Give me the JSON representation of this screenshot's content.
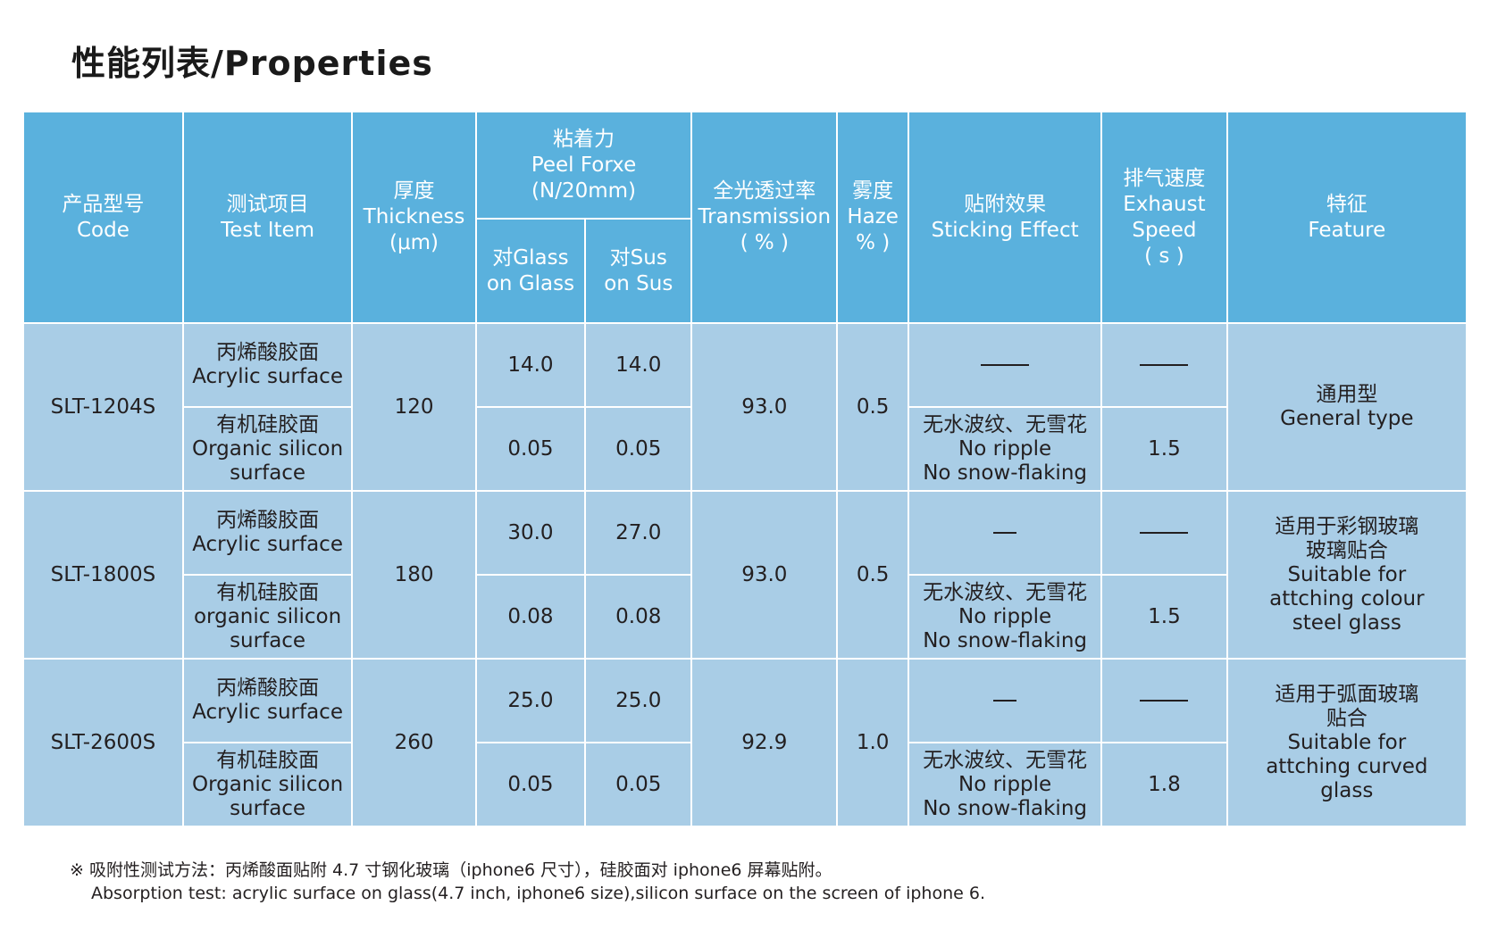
{
  "title": "性能列表/Properties",
  "header": {
    "code": {
      "zh": "产品型号",
      "en": "Code"
    },
    "test_item": {
      "zh": "测试项目",
      "en": "Test Item"
    },
    "thickness": {
      "zh": "厚度",
      "en": "Thickness",
      "unit": "(μm)"
    },
    "peel": {
      "zh": "粘着力",
      "en": "Peel Forxe",
      "unit": "(N/20mm)"
    },
    "glass": {
      "zh": "对Glass",
      "en": "on Glass"
    },
    "sus": {
      "zh": "对Sus",
      "en": "on Sus"
    },
    "transmission": {
      "zh": "全光透过率",
      "en": "Transmission",
      "unit": "( % )"
    },
    "haze": {
      "zh": "雾度",
      "en": "Haze",
      "unit": "% )"
    },
    "sticking": {
      "zh": "贴附效果",
      "en": "Sticking Effect"
    },
    "exhaust": {
      "zh": "排气速度",
      "en1": "Exhaust",
      "en2": "Speed",
      "unit": "( s )"
    },
    "feature": {
      "zh": "特征",
      "en": "Feature"
    }
  },
  "products": [
    {
      "code": "SLT-1204S",
      "thickness": "120",
      "transmission": "93.0",
      "haze": "0.5",
      "feature": {
        "zh1": "通用型",
        "zh2": "",
        "en1": "General type",
        "en2": "",
        "en3": ""
      },
      "rows": [
        {
          "zh": "丙烯酸胶面",
          "en1": "Acrylic surface",
          "en2": "",
          "glass": "14.0",
          "sus": "14.0",
          "exhaust": ""
        },
        {
          "zh": "有机硅胶面",
          "en1": "Organic silicon",
          "en2": "surface",
          "glass": "0.05",
          "sus": "0.05",
          "sticking": {
            "zh": "无水波纹、无雪花",
            "en1": "No ripple",
            "en2": "No snow-flaking"
          },
          "exhaust": "1.5"
        }
      ]
    },
    {
      "code": "SLT-1800S",
      "thickness": "180",
      "transmission": "93.0",
      "haze": "0.5",
      "feature": {
        "zh1": "适用于彩钢玻璃",
        "zh2": "玻璃贴合",
        "en1": "Suitable for",
        "en2": "attching colour",
        "en3": "steel glass"
      },
      "rows": [
        {
          "zh": "丙烯酸胶面",
          "en1": "Acrylic surface",
          "en2": "",
          "glass": "30.0",
          "sus": "27.0",
          "exhaust": ""
        },
        {
          "zh": "有机硅胶面",
          "en1": "organic silicon",
          "en2": "surface",
          "glass": "0.08",
          "sus": "0.08",
          "sticking": {
            "zh": "无水波纹、无雪花",
            "en1": "No ripple",
            "en2": "No snow-flaking"
          },
          "exhaust": "1.5"
        }
      ]
    },
    {
      "code": "SLT-2600S",
      "thickness": "260",
      "transmission": "92.9",
      "haze": "1.0",
      "feature": {
        "zh1": "适用于弧面玻璃",
        "zh2": "贴合",
        "en1": "Suitable for",
        "en2": "attching curved",
        "en3": "glass"
      },
      "rows": [
        {
          "zh": "丙烯酸胶面",
          "en1": "Acrylic surface",
          "en2": "",
          "glass": "25.0",
          "sus": "25.0",
          "exhaust": ""
        },
        {
          "zh": "有机硅胶面",
          "en1": "Organic silicon",
          "en2": "surface",
          "glass": "0.05",
          "sus": "0.05",
          "sticking": {
            "zh": "无水波纹、无雪花",
            "en1": "No ripple",
            "en2": "No snow-flaking"
          },
          "exhaust": "1.8"
        }
      ]
    }
  ],
  "footnote": {
    "zh": "※ 吸附性测试方法：丙烯酸面贴附 4.7 寸钢化玻璃（iphone6 尺寸），硅胶面对 iphone6 屏幕贴附。",
    "en": "Absorption test: acrylic surface on glass(4.7 inch, iphone6 size),silicon surface on the screen of iphone 6."
  }
}
